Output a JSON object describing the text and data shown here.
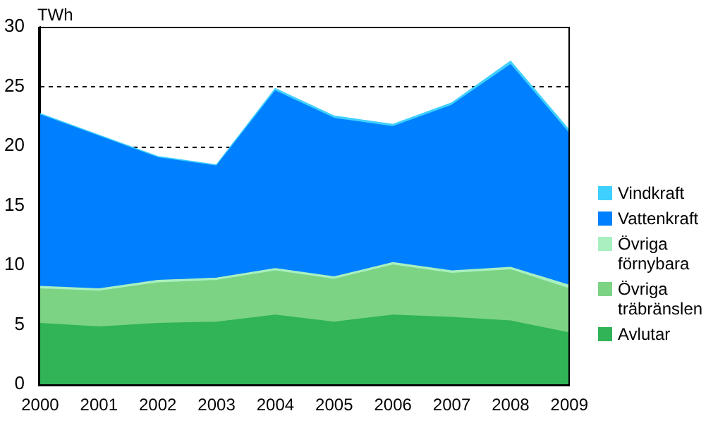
{
  "chart_data": {
    "type": "area",
    "stacked": true,
    "ylabel": "TWh",
    "categories": [
      "2000",
      "2001",
      "2002",
      "2003",
      "2004",
      "2005",
      "2006",
      "2007",
      "2008",
      "2009"
    ],
    "series": [
      {
        "name": "Avlutar",
        "color": "#30b457",
        "values": [
          5.1,
          4.8,
          5.1,
          5.2,
          5.8,
          5.2,
          5.8,
          5.6,
          5.3,
          4.3
        ]
      },
      {
        "name": "Övriga träbränslen",
        "color": "#7dd384",
        "values": [
          2.9,
          3.0,
          3.4,
          3.5,
          3.7,
          3.6,
          4.2,
          3.7,
          4.3,
          3.7
        ]
      },
      {
        "name": "Övriga förnybara",
        "color": "#a8f0c0",
        "values": [
          0.2,
          0.2,
          0.2,
          0.2,
          0.2,
          0.2,
          0.2,
          0.2,
          0.2,
          0.3
        ]
      },
      {
        "name": "Vattenkraft",
        "color": "#0080ff",
        "values": [
          14.4,
          12.8,
          10.3,
          9.4,
          14.9,
          13.3,
          11.4,
          13.9,
          17.0,
          12.7
        ]
      },
      {
        "name": "Vindkraft",
        "color": "#40d0ff",
        "values": [
          0.1,
          0.1,
          0.1,
          0.1,
          0.2,
          0.2,
          0.2,
          0.2,
          0.3,
          0.3
        ]
      }
    ],
    "ylim": [
      0,
      30
    ],
    "yticks": [
      0,
      5,
      10,
      15,
      20,
      25,
      30
    ],
    "grid": "y",
    "legend": "right"
  }
}
